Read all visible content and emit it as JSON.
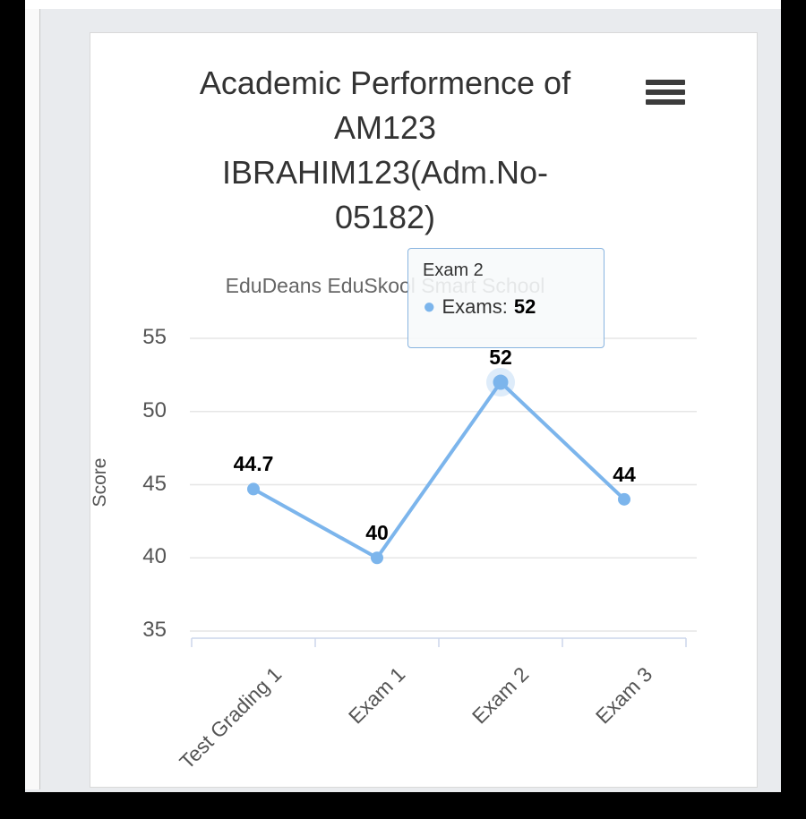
{
  "chart": {
    "context_menu_icon": "hamburger",
    "tooltip": {
      "header": "Exam 2",
      "bullet": "●",
      "series_label": "Exams:",
      "value": "52"
    }
  },
  "chart_data": {
    "type": "line",
    "title": "Academic Performence of AM123 IBRAHIM123(Adm.No-05182)",
    "title_lines": [
      "Academic Performence of",
      "AM123",
      "IBRAHIM123(Adm.No-",
      "05182)"
    ],
    "subtitle": "EduDeans EduSkool Smart School",
    "categories": [
      "Test Grading 1",
      "Exam 1",
      "Exam 2",
      "Exam 3"
    ],
    "series": [
      {
        "name": "Exams",
        "values": [
          44.7,
          40,
          52,
          44
        ]
      }
    ],
    "data_labels": [
      "44.7",
      "40",
      "52",
      "44"
    ],
    "xlabel": "",
    "ylabel": "Score",
    "ylim": [
      35,
      55
    ],
    "yticks": [
      35,
      40,
      45,
      50,
      55
    ],
    "grid": true,
    "legend": "none",
    "line_color": "#7cb5ec",
    "grid_color": "#e6e6e6",
    "axis_color": "#ccd6eb",
    "hovered_index": 2,
    "hovered_category": "Exam 2"
  }
}
